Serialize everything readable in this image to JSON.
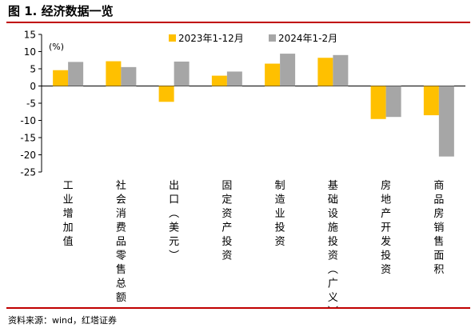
{
  "header": {
    "title": "图 1. 经济数据一览"
  },
  "footer": {
    "source": "资料来源：wind，红塔证券"
  },
  "colors": {
    "rule": "#c00000",
    "series_2023": "#FFC000",
    "series_2024": "#A6A6A6"
  },
  "chart_data": {
    "type": "bar",
    "title": "",
    "xlabel": "",
    "ylabel": "",
    "unit": "(%)",
    "ylim": [
      -25,
      15
    ],
    "yticks": [
      15,
      10,
      5,
      0,
      -5,
      -10,
      -15,
      -20,
      -25
    ],
    "grid": false,
    "legend_position": "top",
    "categories": [
      "工业增加值",
      "社会消费品零售总额",
      "出口（美元）",
      "固定资产投资",
      "制造业投资",
      "基础设施投资（广义）",
      "房地产开发投资",
      "商品房销售面积"
    ],
    "series": [
      {
        "name": "2023年1-12月",
        "color": "#FFC000",
        "values": [
          4.6,
          7.2,
          -4.6,
          3.0,
          6.5,
          8.2,
          -9.6,
          -8.5
        ]
      },
      {
        "name": "2024年1-2月",
        "color": "#A6A6A6",
        "values": [
          7.0,
          5.5,
          7.1,
          4.2,
          9.4,
          9.0,
          -9.0,
          -20.5
        ]
      }
    ]
  }
}
